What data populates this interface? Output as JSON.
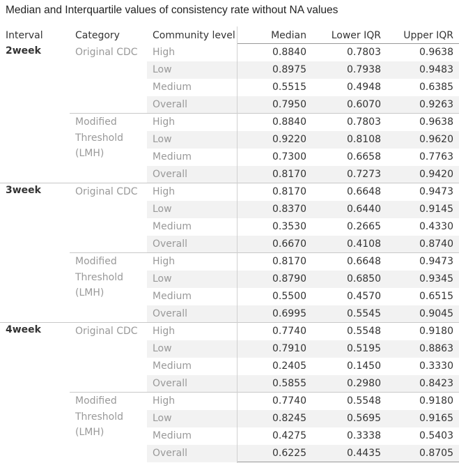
{
  "title": "Median and Interquartile values of consistency rate without NA values",
  "headers": {
    "interval": "Interval",
    "category": "Category",
    "level": "Community level",
    "median": "Median",
    "lower": "Lower IQR",
    "upper": "Upper IQR"
  },
  "chart_data": {
    "type": "table",
    "columns": [
      "Interval",
      "Category",
      "Community level",
      "Median",
      "Lower IQR",
      "Upper IQR"
    ],
    "intervals": [
      {
        "name": "2week",
        "categories": [
          {
            "name": "Original CDC",
            "rows": [
              {
                "level": "High",
                "median": "0.8840",
                "lower": "0.7803",
                "upper": "0.9638"
              },
              {
                "level": "Low",
                "median": "0.8975",
                "lower": "0.7938",
                "upper": "0.9483"
              },
              {
                "level": "Medium",
                "median": "0.5515",
                "lower": "0.4948",
                "upper": "0.6385"
              },
              {
                "level": "Overall",
                "median": "0.7950",
                "lower": "0.6070",
                "upper": "0.9263"
              }
            ]
          },
          {
            "name": "Modified Threshold (LMH)",
            "rows": [
              {
                "level": "High",
                "median": "0.8840",
                "lower": "0.7803",
                "upper": "0.9638"
              },
              {
                "level": "Low",
                "median": "0.9220",
                "lower": "0.8108",
                "upper": "0.9620"
              },
              {
                "level": "Medium",
                "median": "0.7300",
                "lower": "0.6658",
                "upper": "0.7763"
              },
              {
                "level": "Overall",
                "median": "0.8170",
                "lower": "0.7273",
                "upper": "0.9420"
              }
            ]
          }
        ]
      },
      {
        "name": "3week",
        "categories": [
          {
            "name": "Original CDC",
            "rows": [
              {
                "level": "High",
                "median": "0.8170",
                "lower": "0.6648",
                "upper": "0.9473"
              },
              {
                "level": "Low",
                "median": "0.8370",
                "lower": "0.6440",
                "upper": "0.9145"
              },
              {
                "level": "Medium",
                "median": "0.3530",
                "lower": "0.2665",
                "upper": "0.4330"
              },
              {
                "level": "Overall",
                "median": "0.6670",
                "lower": "0.4108",
                "upper": "0.8740"
              }
            ]
          },
          {
            "name": "Modified Threshold (LMH)",
            "rows": [
              {
                "level": "High",
                "median": "0.8170",
                "lower": "0.6648",
                "upper": "0.9473"
              },
              {
                "level": "Low",
                "median": "0.8790",
                "lower": "0.6850",
                "upper": "0.9345"
              },
              {
                "level": "Medium",
                "median": "0.5500",
                "lower": "0.4570",
                "upper": "0.6515"
              },
              {
                "level": "Overall",
                "median": "0.6995",
                "lower": "0.5545",
                "upper": "0.9045"
              }
            ]
          }
        ]
      },
      {
        "name": "4week",
        "categories": [
          {
            "name": "Original CDC",
            "rows": [
              {
                "level": "High",
                "median": "0.7740",
                "lower": "0.5548",
                "upper": "0.9180"
              },
              {
                "level": "Low",
                "median": "0.7910",
                "lower": "0.5195",
                "upper": "0.8863"
              },
              {
                "level": "Medium",
                "median": "0.2405",
                "lower": "0.1450",
                "upper": "0.3330"
              },
              {
                "level": "Overall",
                "median": "0.5855",
                "lower": "0.2980",
                "upper": "0.8423"
              }
            ]
          },
          {
            "name": "Modified Threshold (LMH)",
            "rows": [
              {
                "level": "High",
                "median": "0.7740",
                "lower": "0.5548",
                "upper": "0.9180"
              },
              {
                "level": "Low",
                "median": "0.8245",
                "lower": "0.5695",
                "upper": "0.9165"
              },
              {
                "level": "Medium",
                "median": "0.4275",
                "lower": "0.3338",
                "upper": "0.5403"
              },
              {
                "level": "Overall",
                "median": "0.6225",
                "lower": "0.4435",
                "upper": "0.8705"
              }
            ]
          }
        ]
      }
    ]
  }
}
